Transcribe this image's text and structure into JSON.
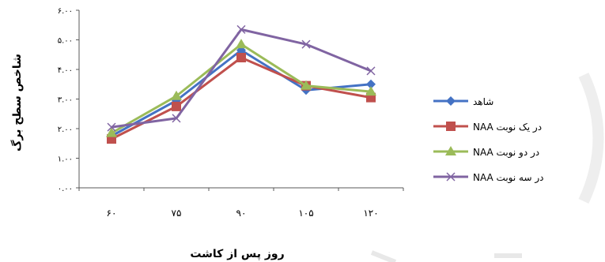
{
  "chart_data": {
    "type": "line",
    "categories": [
      "۶۰",
      "۷۵",
      "۹۰",
      "۱۰۵",
      "۱۲۰"
    ],
    "x": [
      60,
      75,
      90,
      105,
      120
    ],
    "ylabel": "شاخص سطح برگ",
    "xlabel": "روز پس از کاشت",
    "ylim": [
      0,
      6
    ],
    "yticks": [
      {
        "value": 0,
        "label": "۰.۰۰"
      },
      {
        "value": 1,
        "label": "۱.۰۰"
      },
      {
        "value": 2,
        "label": "۲.۰۰"
      },
      {
        "value": 3,
        "label": "۳.۰۰"
      },
      {
        "value": 4,
        "label": "۴.۰۰"
      },
      {
        "value": 5,
        "label": "۵.۰۰"
      },
      {
        "value": 6,
        "label": "۶.۰۰"
      }
    ],
    "grid": false,
    "legend_position": "right",
    "series": [
      {
        "name": "شاهد",
        "color": "#4472C4",
        "marker": "diamond",
        "values": [
          1.75,
          2.95,
          4.65,
          3.3,
          3.5
        ]
      },
      {
        "name": "NAA در یک نوبت",
        "color": "#C0504D",
        "marker": "square",
        "values": [
          1.65,
          2.75,
          4.4,
          3.45,
          3.05
        ]
      },
      {
        "name": "NAA در دو نوبت",
        "color": "#9BBB59",
        "marker": "triangle",
        "values": [
          1.85,
          3.1,
          4.85,
          3.45,
          3.25
        ]
      },
      {
        "name": "NAA در سه نوبت",
        "color": "#8064A2",
        "marker": "x",
        "values": [
          2.05,
          2.35,
          5.35,
          4.85,
          3.95
        ]
      }
    ]
  }
}
